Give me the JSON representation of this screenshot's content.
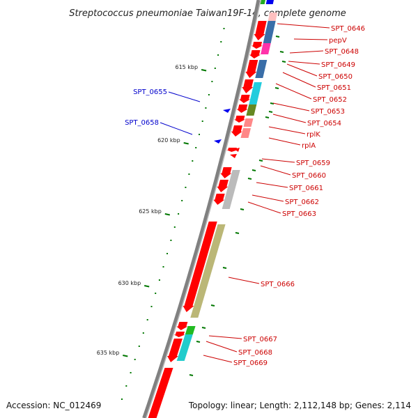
{
  "title": "Streptococcus pneumoniae Taiwan19F-14, complete genome",
  "footer": {
    "accession": "Accession: NC_012469",
    "topology": "Topology: linear; Length: 2,112,148 bp; Genes: 2,114"
  },
  "colors": {
    "gene_label_red": "#cc0000",
    "gene_label_blue": "#0000cc",
    "forward_strand": "#ff0000",
    "reverse_strand": "#0000ee",
    "tick": "#007700",
    "backbone": "#808080"
  },
  "scale_ticks": [
    {
      "label": "615 kbp"
    },
    {
      "label": "620 kbp"
    },
    {
      "label": "625 kbp"
    },
    {
      "label": "630 kbp"
    },
    {
      "label": "635 kbp"
    }
  ],
  "gene_labels_right": [
    {
      "name": "SPT_0646"
    },
    {
      "name": "pepV"
    },
    {
      "name": "SPT_0648"
    },
    {
      "name": "SPT_0649"
    },
    {
      "name": "SPT_0650"
    },
    {
      "name": "SPT_0651"
    },
    {
      "name": "SPT_0652"
    },
    {
      "name": "SPT_0653"
    },
    {
      "name": "SPT_0654"
    },
    {
      "name": "rplK"
    },
    {
      "name": "rplA"
    },
    {
      "name": "SPT_0659"
    },
    {
      "name": "SPT_0660"
    },
    {
      "name": "SPT_0661"
    },
    {
      "name": "SPT_0662"
    },
    {
      "name": "SPT_0663"
    },
    {
      "name": "SPT_0666"
    },
    {
      "name": "SPT_0667"
    },
    {
      "name": "SPT_0668"
    },
    {
      "name": "SPT_0669"
    }
  ],
  "gene_labels_left": [
    {
      "name": "SPT_0655"
    },
    {
      "name": "SPT_0658"
    }
  ]
}
